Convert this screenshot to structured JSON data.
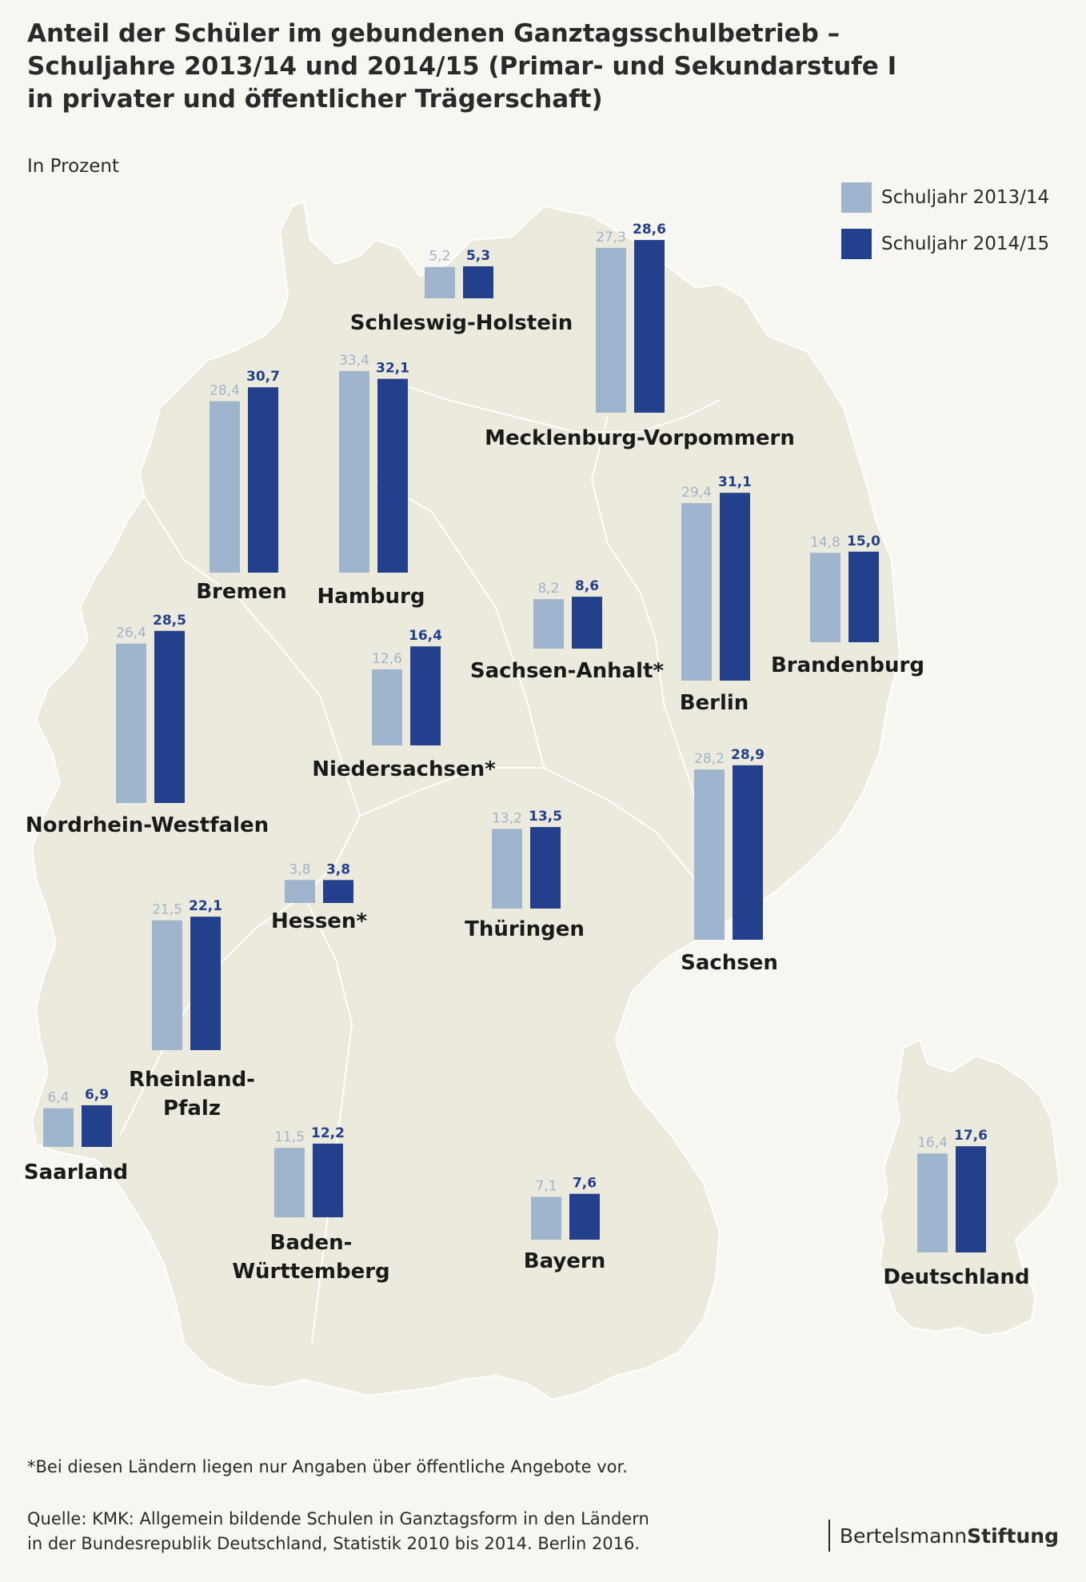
{
  "title_lines": [
    "Anteil der Schüler im gebundenen Ganztagsschulbetrieb –",
    "Schuljahre 2013/14 und 2014/15 (Primar- und Sekundarstufe I",
    "in privater und öffentlicher Trägerschaft)"
  ],
  "unit": "In Prozent",
  "colors": {
    "light": "#9fb4cd",
    "dark": "#23408c",
    "map": "#ebeadc",
    "map_stroke": "#ffffff"
  },
  "legend": [
    {
      "label": "Schuljahr 2013/14",
      "color": "#9fb4cd"
    },
    {
      "label": "Schuljahr 2014/15",
      "color": "#23408c"
    }
  ],
  "chart_data": {
    "type": "bar",
    "series": [
      {
        "name": "Schuljahr 2013/14"
      },
      {
        "name": "Schuljahr 2014/15"
      }
    ],
    "categories": [
      {
        "name": "Schleswig-Holstein",
        "label_lines": [
          "Schleswig-Holstein"
        ],
        "values": [
          5.2,
          5.3
        ],
        "value_labels": [
          "5,2",
          "5,3"
        ]
      },
      {
        "name": "Mecklenburg-Vorpommern",
        "label_lines": [
          "Mecklenburg-Vorpommern"
        ],
        "values": [
          27.3,
          28.6
        ],
        "value_labels": [
          "27,3",
          "28,6"
        ]
      },
      {
        "name": "Bremen",
        "label_lines": [
          "Bremen"
        ],
        "values": [
          28.4,
          30.7
        ],
        "value_labels": [
          "28,4",
          "30,7"
        ]
      },
      {
        "name": "Hamburg",
        "label_lines": [
          "Hamburg"
        ],
        "values": [
          33.4,
          32.1
        ],
        "value_labels": [
          "33,4",
          "32,1"
        ]
      },
      {
        "name": "Sachsen-Anhalt*",
        "label_lines": [
          "Sachsen-Anhalt*"
        ],
        "values": [
          8.2,
          8.6
        ],
        "value_labels": [
          "8,2",
          "8,6"
        ]
      },
      {
        "name": "Berlin",
        "label_lines": [
          "Berlin"
        ],
        "values": [
          29.4,
          31.1
        ],
        "value_labels": [
          "29,4",
          "31,1"
        ]
      },
      {
        "name": "Brandenburg",
        "label_lines": [
          "Brandenburg"
        ],
        "values": [
          14.8,
          15.0
        ],
        "value_labels": [
          "14,8",
          "15,0"
        ]
      },
      {
        "name": "Nordrhein-Westfalen",
        "label_lines": [
          "Nordrhein-Westfalen"
        ],
        "values": [
          26.4,
          28.5
        ],
        "value_labels": [
          "26,4",
          "28,5"
        ]
      },
      {
        "name": "Niedersachsen*",
        "label_lines": [
          "Niedersachsen*"
        ],
        "values": [
          12.6,
          16.4
        ],
        "value_labels": [
          "12,6",
          "16,4"
        ]
      },
      {
        "name": "Thüringen",
        "label_lines": [
          "Thüringen"
        ],
        "values": [
          13.2,
          13.5
        ],
        "value_labels": [
          "13,2",
          "13,5"
        ]
      },
      {
        "name": "Sachsen",
        "label_lines": [
          "Sachsen"
        ],
        "values": [
          28.2,
          28.9
        ],
        "value_labels": [
          "28,2",
          "28,9"
        ]
      },
      {
        "name": "Hessen*",
        "label_lines": [
          "Hessen*"
        ],
        "values": [
          3.8,
          3.8
        ],
        "value_labels": [
          "3,8",
          "3,8"
        ]
      },
      {
        "name": "Rheinland-Pfalz",
        "label_lines": [
          "Rheinland-",
          "Pfalz"
        ],
        "values": [
          21.5,
          22.1
        ],
        "value_labels": [
          "21,5",
          "22,1"
        ]
      },
      {
        "name": "Saarland",
        "label_lines": [
          "Saarland"
        ],
        "values": [
          6.4,
          6.9
        ],
        "value_labels": [
          "6,4",
          "6,9"
        ]
      },
      {
        "name": "Baden-Württemberg",
        "label_lines": [
          "Baden-",
          "Württemberg"
        ],
        "values": [
          11.5,
          12.2
        ],
        "value_labels": [
          "11,5",
          "12,2"
        ]
      },
      {
        "name": "Bayern",
        "label_lines": [
          "Bayern"
        ],
        "values": [
          7.1,
          7.6
        ],
        "value_labels": [
          "7,1",
          "7,6"
        ]
      },
      {
        "name": "Deutschland",
        "label_lines": [
          "Deutschland"
        ],
        "values": [
          16.4,
          17.6
        ],
        "value_labels": [
          "16,4",
          "17,6"
        ]
      }
    ]
  },
  "footnote": "*Bei diesen Ländern liegen nur Angaben über öffentliche Angebote vor.",
  "source_lines": [
    "Quelle:  KMK: Allgemein bildende Schulen in Ganztagsform in den Ländern",
    "in der Bundesrepublik Deutschland, Statistik 2010 bis 2014. Berlin 2016."
  ],
  "brand": {
    "part1": "Bertelsmann",
    "part2": "Stiftung"
  }
}
